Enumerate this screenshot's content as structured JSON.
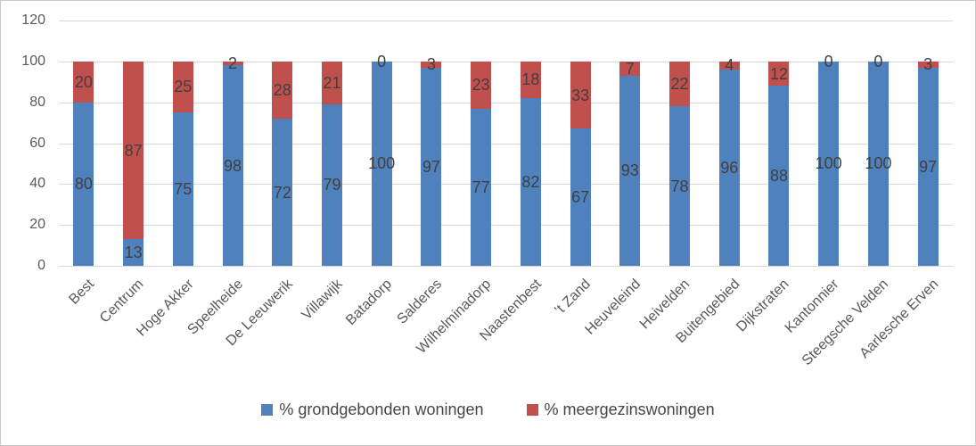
{
  "chart_data": {
    "type": "bar",
    "stacked": true,
    "title": "",
    "categories": [
      "Best",
      "Centrum",
      "Hoge Akker",
      "Speelheide",
      "De Leeuwerik",
      "Villawijk",
      "Batadorp",
      "Salderes",
      "Wilhelminadorp",
      "Naastenbest",
      "’t Zand",
      "Heuveleind",
      "Heivelden",
      "Buitengebied",
      "Dijkstraten",
      "Kantonnier",
      "Steegsche Velden",
      "Aarlesche Erven"
    ],
    "series": [
      {
        "name": "% grondgebonden woningen",
        "color": "#4F81BD",
        "values": [
          80,
          13,
          75,
          98,
          72,
          79,
          100,
          97,
          77,
          82,
          67,
          93,
          78,
          96,
          88,
          100,
          100,
          97
        ]
      },
      {
        "name": "% meergezinswoningen",
        "color": "#C0504D",
        "values": [
          20,
          87,
          25,
          2,
          28,
          21,
          0,
          3,
          23,
          18,
          33,
          7,
          22,
          4,
          12,
          0,
          0,
          3
        ]
      }
    ],
    "ylim": [
      0,
      120
    ],
    "yticks": [
      0,
      20,
      40,
      60,
      80,
      100,
      120
    ],
    "grid": true,
    "data_labels": true,
    "legend_position": "bottom"
  },
  "style": {
    "grid_color": "#D9D9D9",
    "axis_text_color": "#595959",
    "data_label_color": "#404040",
    "legend_text_color": "#464646",
    "border_color": "#C9C9C9",
    "background": "#FFFFFF"
  }
}
